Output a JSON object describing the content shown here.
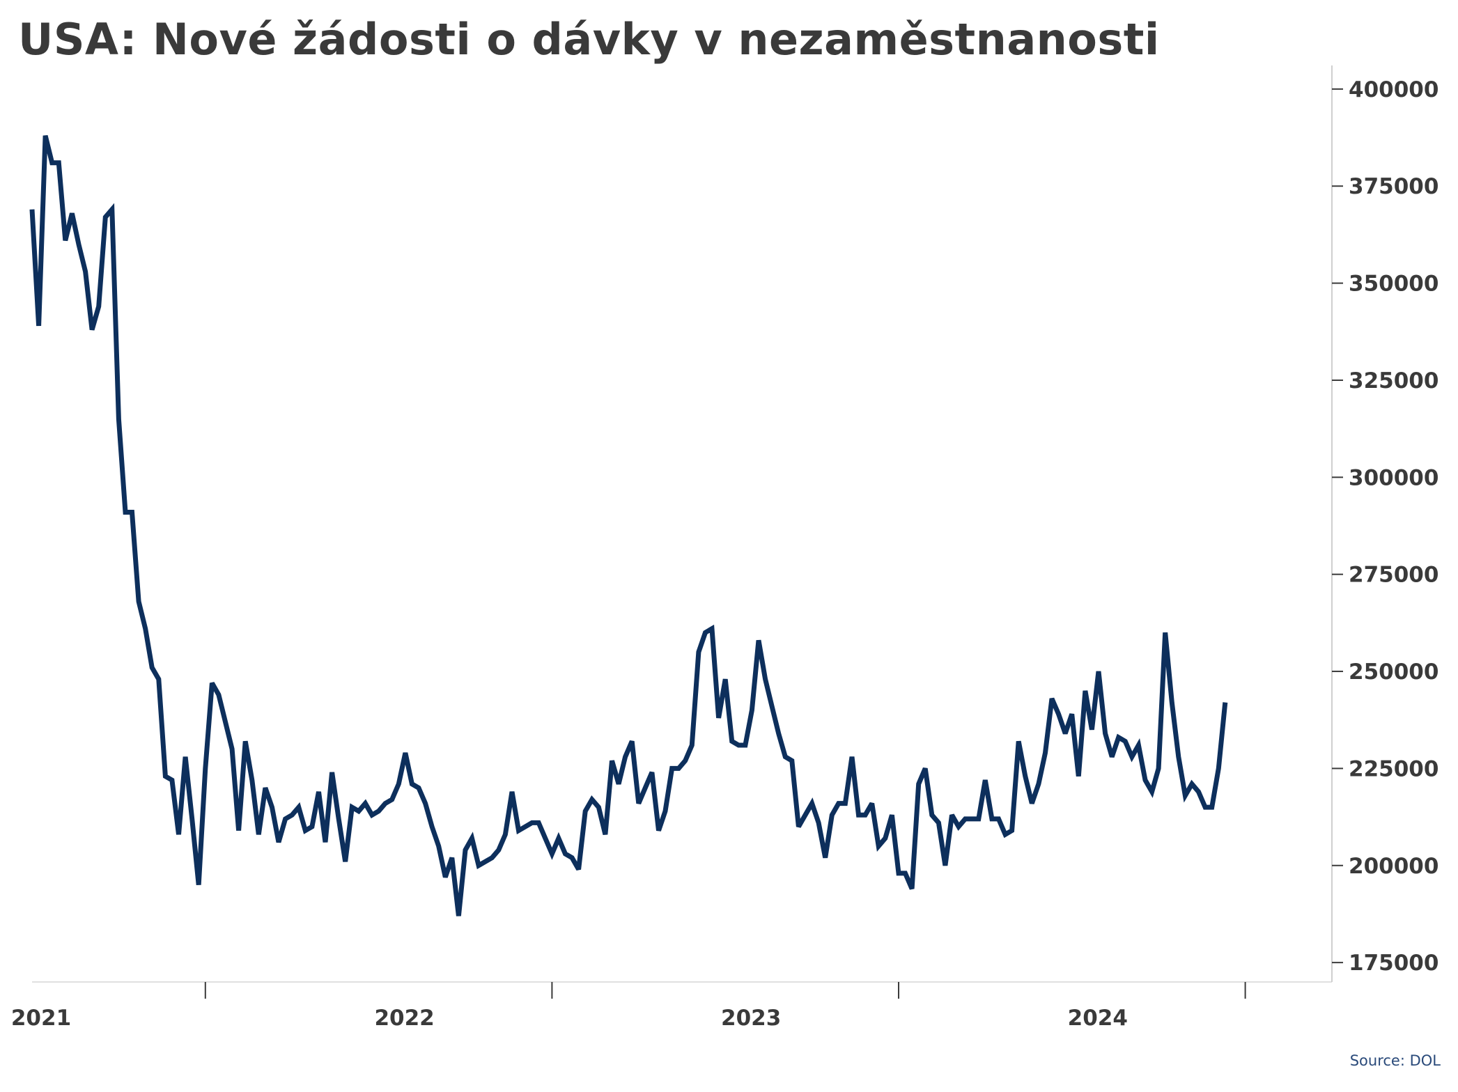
{
  "chart_data": {
    "type": "line",
    "title": "USA: Nové žádosti o dávky v nezaměstnanosti",
    "source": "Source: DOL",
    "xlabel": "",
    "ylabel": "",
    "y_axis_position": "right",
    "ylim": [
      170000,
      405000
    ],
    "yticks": [
      175000,
      200000,
      225000,
      250000,
      275000,
      300000,
      325000,
      350000,
      375000,
      400000
    ],
    "xlim": [
      2021.0,
      2024.75
    ],
    "x_tick_labels": [
      {
        "label": "2021",
        "x": 2021.0
      },
      {
        "label": "2022",
        "x": 2022.0
      },
      {
        "label": "2023",
        "x": 2023.0
      },
      {
        "label": "2024",
        "x": 2024.0
      }
    ],
    "x_minor_ticks": [
      2021.5,
      2022.5,
      2023.5,
      2024.5
    ],
    "grid": false,
    "line_color": "#0d2f5c",
    "series": [
      {
        "name": "",
        "x_start": 2021.0,
        "x_step": 0.01923,
        "values": [
          369000,
          339000,
          388000,
          381000,
          381000,
          361000,
          368000,
          360000,
          353000,
          338000,
          344000,
          367000,
          369000,
          315000,
          291000,
          291000,
          268000,
          261000,
          251000,
          248000,
          223000,
          222000,
          208000,
          228000,
          212000,
          195000,
          225000,
          247000,
          244000,
          237000,
          230000,
          209000,
          232000,
          222000,
          208000,
          220000,
          215000,
          206000,
          212000,
          213000,
          215000,
          209000,
          210000,
          219000,
          206000,
          224000,
          212000,
          201000,
          215000,
          214000,
          216000,
          213000,
          214000,
          216000,
          217000,
          221000,
          229000,
          221000,
          220000,
          216000,
          210000,
          205000,
          197000,
          202000,
          187000,
          204000,
          207000,
          200000,
          201000,
          202000,
          204000,
          208000,
          219000,
          209000,
          210000,
          211000,
          211000,
          207000,
          203000,
          207000,
          203000,
          202000,
          199000,
          214000,
          217000,
          215000,
          208000,
          227000,
          221000,
          228000,
          232000,
          216000,
          220000,
          224000,
          209000,
          214000,
          225000,
          225000,
          227000,
          231000,
          255000,
          260000,
          261000,
          238000,
          248000,
          232000,
          231000,
          231000,
          240000,
          258000,
          248000,
          241000,
          234000,
          228000,
          227000,
          210000,
          213000,
          216000,
          211000,
          202000,
          213000,
          216000,
          216000,
          228000,
          213000,
          213000,
          216000,
          205000,
          207000,
          213000,
          198000,
          198000,
          194000,
          221000,
          225000,
          213000,
          211000,
          200000,
          213000,
          210000,
          212000,
          212000,
          212000,
          222000,
          212000,
          212000,
          208000,
          209000,
          232000,
          223000,
          216000,
          221000,
          229000,
          243000,
          239000,
          234000,
          239000,
          223000,
          245000,
          235000,
          250000,
          234000,
          228000,
          233000,
          232000,
          228000,
          231000,
          222000,
          219000,
          225000,
          260000,
          242000,
          228000,
          218000,
          221000,
          219000,
          215000,
          215000,
          225000,
          242000
        ]
      }
    ]
  }
}
